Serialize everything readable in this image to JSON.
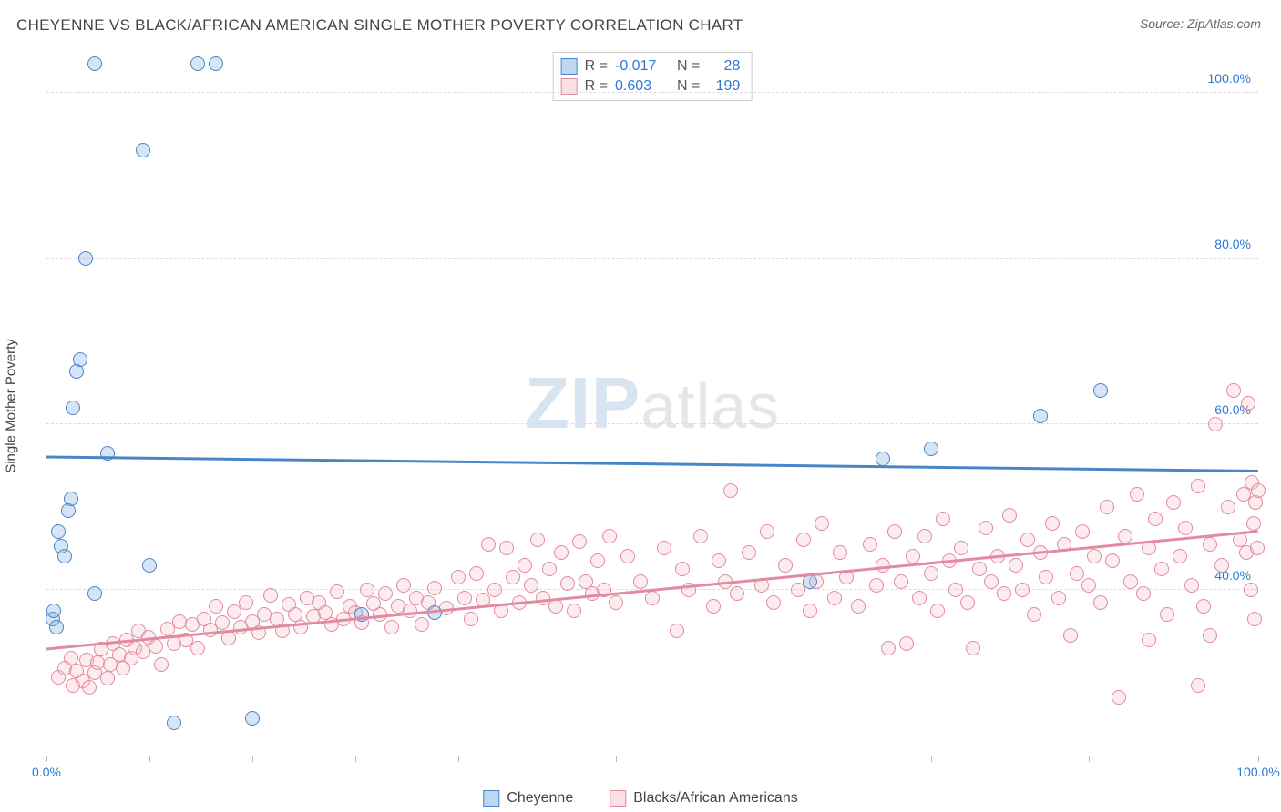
{
  "title": "CHEYENNE VS BLACK/AFRICAN AMERICAN SINGLE MOTHER POVERTY CORRELATION CHART",
  "source_label": "Source: ",
  "source_value": "ZipAtlas.com",
  "y_axis_title": "Single Mother Poverty",
  "watermark": {
    "left": "ZIP",
    "right": "atlas"
  },
  "chart": {
    "type": "scatter",
    "xlim": [
      0,
      100
    ],
    "ylim": [
      20,
      105
    ],
    "background_color": "#ffffff",
    "grid_color": "#dddddd",
    "grid_dash": true,
    "point_radius": 8,
    "point_border_width": 1.2,
    "point_fill_opacity": 0.28,
    "xtick_positions": [
      0,
      8.5,
      17,
      25.5,
      34,
      47,
      60,
      73,
      86,
      100
    ],
    "xtick_labels": {
      "0": "0.0%",
      "100": "100.0%"
    },
    "xtick_label_color": "#2b7bd6",
    "ytick_positions": [
      40,
      60,
      80,
      100
    ],
    "ytick_labels": {
      "40": "40.0%",
      "60": "60.0%",
      "80": "80.0%",
      "100": "100.0%"
    },
    "ytick_label_color": "#2b7bd6",
    "trend_line_width": 3
  },
  "series": [
    {
      "id": "cheyenne",
      "label": "Cheyenne",
      "color": "#6da3e0",
      "border_color": "#4a85c7",
      "R": "-0.017",
      "N": "28",
      "trend": {
        "y_at_x0": 56.0,
        "y_at_x100": 54.3
      },
      "points": [
        [
          0.5,
          36.5
        ],
        [
          0.6,
          37.5
        ],
        [
          0.8,
          35.5
        ],
        [
          1.0,
          47.0
        ],
        [
          1.2,
          45.3
        ],
        [
          1.5,
          44.0
        ],
        [
          1.8,
          49.5
        ],
        [
          2.0,
          51.0
        ],
        [
          2.2,
          62.0
        ],
        [
          2.5,
          66.4
        ],
        [
          2.8,
          67.8
        ],
        [
          3.2,
          80.0
        ],
        [
          4.0,
          103.5
        ],
        [
          8.0,
          93.0
        ],
        [
          12.5,
          103.5
        ],
        [
          14.0,
          103.5
        ],
        [
          4.0,
          39.5
        ],
        [
          5.0,
          56.5
        ],
        [
          8.5,
          43.0
        ],
        [
          10.5,
          24.0
        ],
        [
          17.0,
          24.5
        ],
        [
          26.0,
          37.0
        ],
        [
          32.0,
          37.2
        ],
        [
          63.0,
          41.0
        ],
        [
          69.0,
          55.8
        ],
        [
          73.0,
          57.0
        ],
        [
          82.0,
          61.0
        ],
        [
          87.0,
          64.0
        ]
      ]
    },
    {
      "id": "blacks",
      "label": "Blacks/African Americans",
      "color": "#f5b9c6",
      "border_color": "#e28aa0",
      "R": "0.603",
      "N": "199",
      "trend": {
        "y_at_x0": 32.8,
        "y_at_x100": 47.0
      },
      "points": [
        [
          1,
          29.5
        ],
        [
          1.5,
          30.5
        ],
        [
          2,
          31.8
        ],
        [
          2.2,
          28.5
        ],
        [
          2.5,
          30.2
        ],
        [
          3,
          29.0
        ],
        [
          3.3,
          31.5
        ],
        [
          3.5,
          28.2
        ],
        [
          4,
          30.0
        ],
        [
          4.2,
          31.2
        ],
        [
          4.5,
          32.8
        ],
        [
          5,
          29.3
        ],
        [
          5.3,
          31.0
        ],
        [
          5.5,
          33.5
        ],
        [
          6,
          32.2
        ],
        [
          6.3,
          30.5
        ],
        [
          6.6,
          34.0
        ],
        [
          7,
          31.8
        ],
        [
          7.3,
          33.0
        ],
        [
          7.6,
          35.0
        ],
        [
          8,
          32.5
        ],
        [
          8.4,
          34.3
        ],
        [
          9,
          33.2
        ],
        [
          9.5,
          31.0
        ],
        [
          10,
          35.3
        ],
        [
          10.5,
          33.5
        ],
        [
          11,
          36.2
        ],
        [
          11.5,
          34.0
        ],
        [
          12,
          35.8
        ],
        [
          12.5,
          33.0
        ],
        [
          13,
          36.5
        ],
        [
          13.5,
          35.2
        ],
        [
          14,
          38.0
        ],
        [
          14.5,
          36.0
        ],
        [
          15,
          34.2
        ],
        [
          15.5,
          37.3
        ],
        [
          16,
          35.5
        ],
        [
          16.5,
          38.5
        ],
        [
          17,
          36.2
        ],
        [
          17.5,
          34.8
        ],
        [
          18,
          37.0
        ],
        [
          18.5,
          39.3
        ],
        [
          19,
          36.5
        ],
        [
          19.5,
          35.0
        ],
        [
          20,
          38.2
        ],
        [
          20.5,
          37.0
        ],
        [
          21,
          35.5
        ],
        [
          21.5,
          39.0
        ],
        [
          22,
          36.8
        ],
        [
          22.5,
          38.5
        ],
        [
          23,
          37.2
        ],
        [
          23.5,
          35.8
        ],
        [
          24,
          39.8
        ],
        [
          24.5,
          36.5
        ],
        [
          25,
          38.0
        ],
        [
          25.5,
          37.2
        ],
        [
          26,
          36.0
        ],
        [
          26.5,
          40.0
        ],
        [
          27,
          38.3
        ],
        [
          27.5,
          37.0
        ],
        [
          28,
          39.5
        ],
        [
          28.5,
          35.5
        ],
        [
          29,
          38.0
        ],
        [
          29.5,
          40.5
        ],
        [
          30,
          37.5
        ],
        [
          30.5,
          39.0
        ],
        [
          31,
          35.8
        ],
        [
          31.5,
          38.5
        ],
        [
          32,
          40.2
        ],
        [
          33,
          37.8
        ],
        [
          34,
          41.5
        ],
        [
          34.5,
          39.0
        ],
        [
          35,
          36.5
        ],
        [
          35.5,
          42.0
        ],
        [
          36,
          38.8
        ],
        [
          36.5,
          45.5
        ],
        [
          37,
          40.0
        ],
        [
          37.5,
          37.5
        ],
        [
          38,
          45.0
        ],
        [
          38.5,
          41.5
        ],
        [
          39,
          38.5
        ],
        [
          39.5,
          43.0
        ],
        [
          40,
          40.5
        ],
        [
          40.5,
          46.0
        ],
        [
          41,
          39.0
        ],
        [
          41.5,
          42.5
        ],
        [
          42,
          38.0
        ],
        [
          42.5,
          44.5
        ],
        [
          43,
          40.8
        ],
        [
          43.5,
          37.5
        ],
        [
          44,
          45.8
        ],
        [
          44.5,
          41.0
        ],
        [
          45,
          39.5
        ],
        [
          45.5,
          43.5
        ],
        [
          46,
          40.0
        ],
        [
          46.5,
          46.5
        ],
        [
          47,
          38.5
        ],
        [
          48,
          44.0
        ],
        [
          49,
          41.0
        ],
        [
          50,
          39.0
        ],
        [
          51,
          45.0
        ],
        [
          52,
          35.0
        ],
        [
          52.5,
          42.5
        ],
        [
          53,
          40.0
        ],
        [
          54,
          46.5
        ],
        [
          55,
          38.0
        ],
        [
          55.5,
          43.5
        ],
        [
          56,
          41.0
        ],
        [
          56.5,
          52.0
        ],
        [
          57,
          39.5
        ],
        [
          58,
          44.5
        ],
        [
          59,
          40.5
        ],
        [
          59.5,
          47.0
        ],
        [
          60,
          38.5
        ],
        [
          61,
          43.0
        ],
        [
          62,
          40.0
        ],
        [
          62.5,
          46.0
        ],
        [
          63,
          37.5
        ],
        [
          63.5,
          41.0
        ],
        [
          64,
          48.0
        ],
        [
          65,
          39.0
        ],
        [
          65.5,
          44.5
        ],
        [
          66,
          41.5
        ],
        [
          67,
          38.0
        ],
        [
          68,
          45.5
        ],
        [
          68.5,
          40.5
        ],
        [
          69,
          43.0
        ],
        [
          69.5,
          33.0
        ],
        [
          70,
          47.0
        ],
        [
          70.5,
          41.0
        ],
        [
          71,
          33.5
        ],
        [
          71.5,
          44.0
        ],
        [
          72,
          39.0
        ],
        [
          72.5,
          46.5
        ],
        [
          73,
          42.0
        ],
        [
          73.5,
          37.5
        ],
        [
          74,
          48.5
        ],
        [
          74.5,
          43.5
        ],
        [
          75,
          40.0
        ],
        [
          75.5,
          45.0
        ],
        [
          76,
          38.5
        ],
        [
          76.5,
          33.0
        ],
        [
          77,
          42.5
        ],
        [
          77.5,
          47.5
        ],
        [
          78,
          41.0
        ],
        [
          78.5,
          44.0
        ],
        [
          79,
          39.5
        ],
        [
          79.5,
          49.0
        ],
        [
          80,
          43.0
        ],
        [
          80.5,
          40.0
        ],
        [
          81,
          46.0
        ],
        [
          81.5,
          37.0
        ],
        [
          82,
          44.5
        ],
        [
          82.5,
          41.5
        ],
        [
          83,
          48.0
        ],
        [
          83.5,
          39.0
        ],
        [
          84,
          45.5
        ],
        [
          84.5,
          34.5
        ],
        [
          85,
          42.0
        ],
        [
          85.5,
          47.0
        ],
        [
          86,
          40.5
        ],
        [
          86.5,
          44.0
        ],
        [
          87,
          38.5
        ],
        [
          87.5,
          50.0
        ],
        [
          88,
          43.5
        ],
        [
          88.5,
          27.0
        ],
        [
          89,
          46.5
        ],
        [
          89.5,
          41.0
        ],
        [
          90,
          51.5
        ],
        [
          90.5,
          39.5
        ],
        [
          91,
          45.0
        ],
        [
          91.5,
          48.5
        ],
        [
          92,
          42.5
        ],
        [
          92.5,
          37.0
        ],
        [
          93,
          50.5
        ],
        [
          93.5,
          44.0
        ],
        [
          94,
          47.5
        ],
        [
          94.5,
          40.5
        ],
        [
          95,
          52.5
        ],
        [
          95.5,
          38.0
        ],
        [
          96,
          45.5
        ],
        [
          96.5,
          60.0
        ],
        [
          97,
          43.0
        ],
        [
          97.5,
          50.0
        ],
        [
          98,
          64.0
        ],
        [
          98.5,
          46.0
        ],
        [
          98.8,
          51.5
        ],
        [
          99,
          44.5
        ],
        [
          99.2,
          62.5
        ],
        [
          99.4,
          40.0
        ],
        [
          99.5,
          53.0
        ],
        [
          99.6,
          48.0
        ],
        [
          99.7,
          36.5
        ],
        [
          99.8,
          50.5
        ],
        [
          99.9,
          45.0
        ],
        [
          100,
          52.0
        ],
        [
          95,
          28.5
        ],
        [
          91,
          34.0
        ],
        [
          96,
          34.5
        ]
      ]
    }
  ],
  "stats_legend": {
    "R_label": "R =",
    "N_label": "N ="
  },
  "bottom_legend": {}
}
